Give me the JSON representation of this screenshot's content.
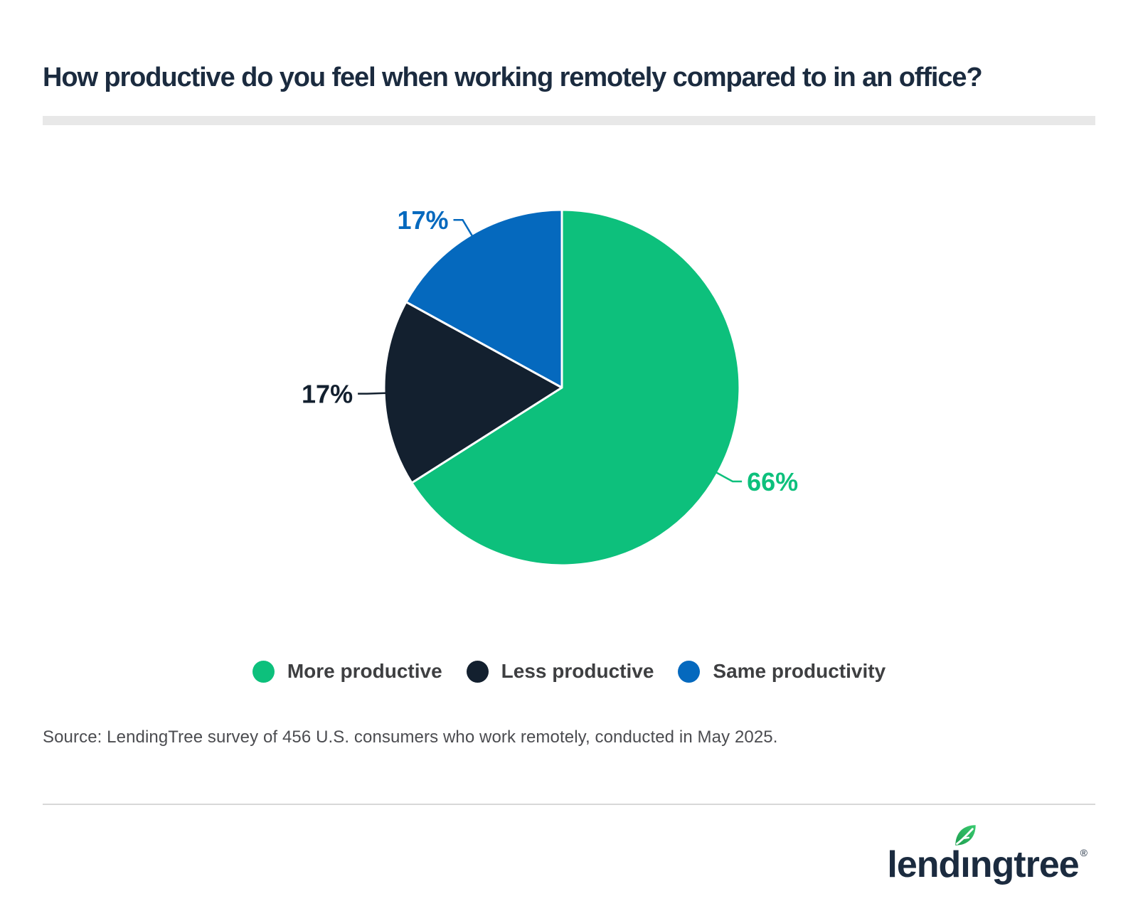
{
  "chart_data": {
    "type": "pie",
    "title": "How productive do you feel when working remotely compared to in an office?",
    "slices": [
      {
        "label": "More productive",
        "value": 66,
        "display_label": "66%",
        "color": "#0dc07c"
      },
      {
        "label": "Less productive",
        "value": 17,
        "display_label": "17%",
        "color": "#13202f"
      },
      {
        "label": "Same productivity",
        "value": 17,
        "display_label": "17%",
        "color": "#0569be"
      }
    ],
    "start_angle_deg": 0,
    "direction": "clockwise",
    "legend_position": "bottom",
    "data_label_format": "percent"
  },
  "source_note": "Source: LendingTree survey of 456 U.S. consumers who work remotely, conducted in May 2025.",
  "footer": {
    "logo_text": "lendingtree",
    "registered_mark": "®"
  },
  "theme": {
    "background": "#ffffff",
    "title_color": "#1b2b3f",
    "title_bar_color": "#e8e8e8",
    "legend_text_color": "#3e3f41",
    "source_text_color": "#4b4c50",
    "divider_color": "#d8d8d8",
    "logo_color": "#1b2b3f",
    "leaf_gradient_start": "#1e9e50",
    "leaf_gradient_end": "#3acb70"
  }
}
